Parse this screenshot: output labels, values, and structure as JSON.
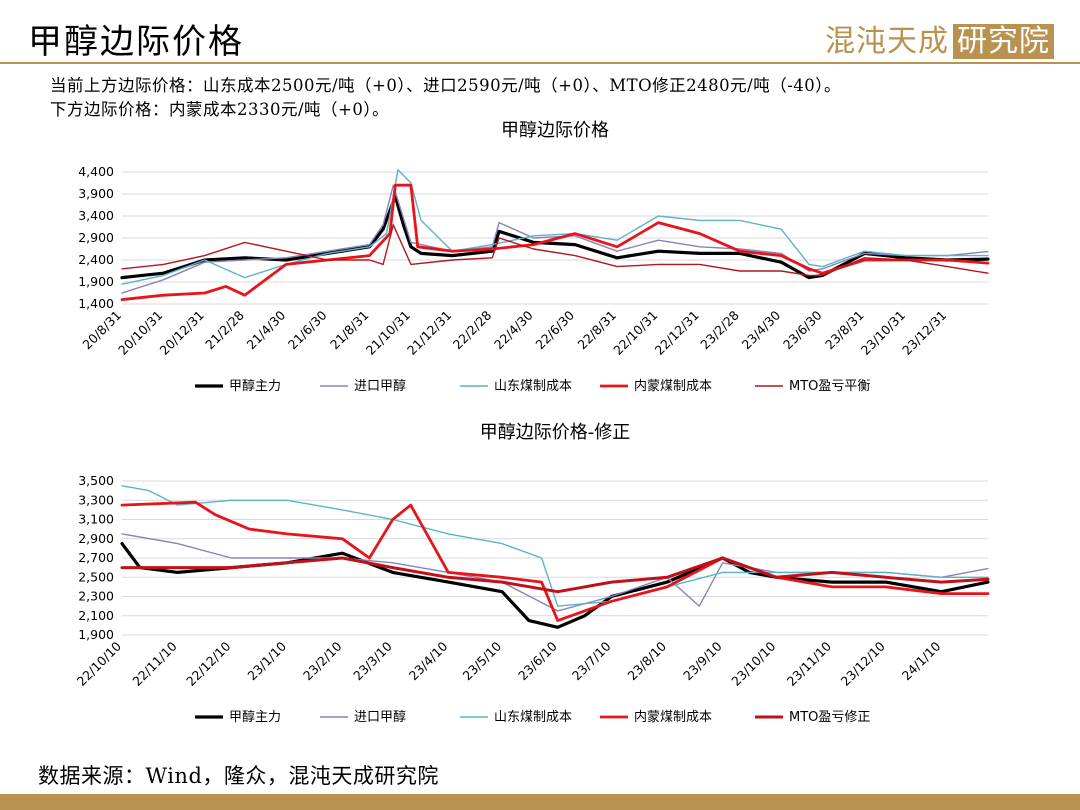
{
  "header": {
    "title": "甲醇边际价格",
    "logo_text": "混沌天成",
    "logo_boxed_text": "研究院"
  },
  "intro": {
    "line1": "当前上方边际价格：山东成本2500元/吨（+0）、进口2590元/吨（+0）、MTO修正2480元/吨（-40）。",
    "line2": "下方边际价格：内蒙成本2330元/吨（+0）。"
  },
  "footer": {
    "source": "数据来源：Wind，隆众，混沌天成研究院"
  },
  "colors": {
    "accent": "#b9924f",
    "methanol_main": "#000000",
    "import": "#8a83b8",
    "shandong": "#5ab4c8",
    "inner_mongolia": "#e8141b",
    "mto_balance": "#b3171f",
    "mto_corrected": "#c01018"
  },
  "chart_data": [
    {
      "type": "line",
      "title": "甲醇边际价格",
      "xlabel": "",
      "ylabel": "",
      "ylim": [
        1400,
        4400
      ],
      "yticks": [
        1400,
        1900,
        2400,
        2900,
        3400,
        3900,
        4400
      ],
      "ytick_labels": [
        "1,400",
        "1,900",
        "2,400",
        "2,900",
        "3,400",
        "3,900",
        "4,400"
      ],
      "x_ticks": [
        "20/8/31",
        "20/10/31",
        "20/12/31",
        "21/2/28",
        "21/4/30",
        "21/6/30",
        "21/8/31",
        "21/10/31",
        "21/12/31",
        "22/2/28",
        "22/4/30",
        "22/6/30",
        "22/8/31",
        "22/10/31",
        "22/12/31",
        "23/2/28",
        "23/4/30",
        "23/6/30",
        "23/8/31",
        "23/10/31",
        "23/12/31"
      ],
      "x_range": [
        "2020-08-31",
        "2024-02-29"
      ],
      "grid": "horizontal",
      "legend_position": "bottom",
      "series": [
        {
          "name": "甲醇主力",
          "color": "#000000",
          "width": 3.2,
          "x": [
            "2020-08-31",
            "2020-10-31",
            "2020-12-31",
            "2021-02-28",
            "2021-04-30",
            "2021-06-30",
            "2021-08-31",
            "2021-09-20",
            "2021-10-08",
            "2021-10-20",
            "2021-10-31",
            "2021-11-15",
            "2021-12-31",
            "2022-02-28",
            "2022-03-10",
            "2022-04-30",
            "2022-06-30",
            "2022-08-31",
            "2022-10-31",
            "2022-12-31",
            "2023-02-28",
            "2023-04-30",
            "2023-06-10",
            "2023-06-30",
            "2023-08-31",
            "2023-10-31",
            "2023-12-31",
            "2024-02-29"
          ],
          "values": [
            2000,
            2100,
            2400,
            2450,
            2400,
            2550,
            2700,
            3100,
            3850,
            3200,
            2700,
            2550,
            2500,
            2600,
            3050,
            2800,
            2750,
            2450,
            2600,
            2550,
            2550,
            2350,
            2000,
            2050,
            2550,
            2450,
            2400,
            2420
          ]
        },
        {
          "name": "进口甲醇",
          "color": "#8a83b8",
          "width": 1.4,
          "x": [
            "2020-08-31",
            "2020-10-31",
            "2020-12-31",
            "2021-02-28",
            "2021-04-30",
            "2021-06-30",
            "2021-08-31",
            "2021-09-20",
            "2021-10-05",
            "2021-10-31",
            "2021-12-31",
            "2022-02-28",
            "2022-03-10",
            "2022-04-30",
            "2022-06-30",
            "2022-08-31",
            "2022-10-31",
            "2022-12-31",
            "2023-02-28",
            "2023-04-30",
            "2023-06-10",
            "2023-06-30",
            "2023-08-31",
            "2023-10-31",
            "2023-12-31",
            "2024-02-29"
          ],
          "values": [
            1650,
            1950,
            2350,
            2400,
            2450,
            2600,
            2750,
            3200,
            4100,
            2800,
            2600,
            2700,
            3250,
            2900,
            2950,
            2600,
            2850,
            2700,
            2650,
            2550,
            2150,
            2200,
            2550,
            2500,
            2500,
            2590
          ]
        },
        {
          "name": "山东煤制成本",
          "color": "#5ab4c8",
          "width": 1.4,
          "x": [
            "2020-08-31",
            "2020-10-31",
            "2020-12-31",
            "2021-02-28",
            "2021-04-30",
            "2021-06-30",
            "2021-08-31",
            "2021-09-25",
            "2021-10-12",
            "2021-10-31",
            "2021-11-15",
            "2021-12-31",
            "2022-02-28",
            "2022-04-30",
            "2022-06-30",
            "2022-08-31",
            "2022-10-31",
            "2022-12-31",
            "2023-02-28",
            "2023-04-30",
            "2023-06-10",
            "2023-06-30",
            "2023-08-31",
            "2023-10-31",
            "2023-12-31",
            "2024-02-29"
          ],
          "values": [
            1850,
            2050,
            2400,
            2000,
            2300,
            2550,
            2700,
            3000,
            4450,
            4150,
            3300,
            2600,
            2750,
            2950,
            3000,
            2850,
            3400,
            3300,
            3300,
            3100,
            2300,
            2250,
            2600,
            2500,
            2500,
            2500
          ]
        },
        {
          "name": "内蒙煤制成本",
          "color": "#e8141b",
          "width": 2.8,
          "x": [
            "2020-08-31",
            "2020-10-31",
            "2020-12-31",
            "2021-01-31",
            "2021-02-28",
            "2021-04-30",
            "2021-06-30",
            "2021-08-31",
            "2021-09-30",
            "2021-10-08",
            "2021-10-31",
            "2021-11-10",
            "2021-12-31",
            "2022-02-28",
            "2022-04-30",
            "2022-06-30",
            "2022-08-31",
            "2022-10-31",
            "2022-12-31",
            "2023-02-28",
            "2023-04-30",
            "2023-06-10",
            "2023-06-30",
            "2023-08-31",
            "2023-10-31",
            "2023-12-31",
            "2024-02-29"
          ],
          "values": [
            1500,
            1600,
            1650,
            1800,
            1600,
            2300,
            2400,
            2500,
            3000,
            4100,
            4100,
            2700,
            2600,
            2650,
            2750,
            3000,
            2700,
            3250,
            3000,
            2600,
            2500,
            2200,
            2100,
            2400,
            2400,
            2400,
            2330
          ]
        },
        {
          "name": "MTO盈亏平衡",
          "color": "#b3171f",
          "width": 1.4,
          "x": [
            "2020-08-31",
            "2020-10-31",
            "2020-12-31",
            "2021-02-28",
            "2021-04-30",
            "2021-06-30",
            "2021-08-31",
            "2021-09-20",
            "2021-10-05",
            "2021-10-31",
            "2021-12-31",
            "2022-02-28",
            "2022-03-10",
            "2022-04-30",
            "2022-06-30",
            "2022-08-31",
            "2022-10-31",
            "2022-12-31",
            "2023-02-28",
            "2023-04-30",
            "2023-06-10",
            "2023-06-30",
            "2023-08-31",
            "2023-10-31",
            "2023-12-31",
            "2024-02-29"
          ],
          "values": [
            2200,
            2300,
            2500,
            2800,
            2600,
            2400,
            2400,
            2300,
            3200,
            2300,
            2400,
            2450,
            2900,
            2650,
            2500,
            2250,
            2300,
            2300,
            2150,
            2150,
            2050,
            2050,
            2450,
            2400,
            2250,
            2100
          ]
        }
      ]
    },
    {
      "type": "line",
      "title": "甲醇边际价格-修正",
      "xlabel": "",
      "ylabel": "",
      "ylim": [
        1900,
        3500
      ],
      "yticks": [
        1900,
        2100,
        2300,
        2500,
        2700,
        2900,
        3100,
        3300,
        3500
      ],
      "ytick_labels": [
        "1,900",
        "2,100",
        "2,300",
        "2,500",
        "2,700",
        "2,900",
        "3,100",
        "3,300",
        "3,500"
      ],
      "x_ticks": [
        "22/10/10",
        "22/11/10",
        "22/12/10",
        "23/1/10",
        "23/2/10",
        "23/3/10",
        "23/4/10",
        "23/5/10",
        "23/6/10",
        "23/7/10",
        "23/8/10",
        "23/9/10",
        "23/10/10",
        "23/11/10",
        "23/12/10",
        "24/1/10"
      ],
      "x_range": [
        "2022-10-10",
        "2024-02-05"
      ],
      "grid": "horizontal",
      "legend_position": "bottom",
      "series": [
        {
          "name": "甲醇主力",
          "color": "#000000",
          "width": 3.2,
          "x": [
            "2022-10-10",
            "2022-10-20",
            "2022-11-10",
            "2022-12-10",
            "2023-01-10",
            "2023-02-10",
            "2023-03-10",
            "2023-04-10",
            "2023-05-10",
            "2023-05-25",
            "2023-06-10",
            "2023-06-25",
            "2023-07-10",
            "2023-08-10",
            "2023-09-10",
            "2023-09-25",
            "2023-10-10",
            "2023-11-10",
            "2023-12-10",
            "2024-01-10",
            "2024-02-05"
          ],
          "values": [
            2850,
            2600,
            2550,
            2600,
            2650,
            2750,
            2550,
            2450,
            2350,
            2050,
            1980,
            2100,
            2300,
            2450,
            2700,
            2550,
            2500,
            2450,
            2450,
            2350,
            2450
          ]
        },
        {
          "name": "进口甲醇",
          "color": "#8a83b8",
          "width": 1.4,
          "x": [
            "2022-10-10",
            "2022-11-10",
            "2022-12-10",
            "2023-01-10",
            "2023-02-10",
            "2023-03-10",
            "2023-04-10",
            "2023-05-10",
            "2023-06-10",
            "2023-07-10",
            "2023-08-10",
            "2023-08-28",
            "2023-09-10",
            "2023-10-10",
            "2023-11-10",
            "2023-12-10",
            "2024-01-10",
            "2024-02-05"
          ],
          "values": [
            2950,
            2850,
            2700,
            2700,
            2700,
            2650,
            2550,
            2450,
            2150,
            2300,
            2500,
            2200,
            2650,
            2550,
            2550,
            2550,
            2500,
            2590
          ]
        },
        {
          "name": "山东煤制成本",
          "color": "#5ab4c8",
          "width": 1.4,
          "x": [
            "2022-10-10",
            "2022-10-25",
            "2022-11-10",
            "2022-12-10",
            "2023-01-10",
            "2023-02-10",
            "2023-03-10",
            "2023-04-10",
            "2023-05-10",
            "2023-06-01",
            "2023-06-10",
            "2023-07-10",
            "2023-08-10",
            "2023-09-10",
            "2023-10-10",
            "2023-11-10",
            "2023-12-10",
            "2024-01-10",
            "2024-02-05"
          ],
          "values": [
            3450,
            3400,
            3250,
            3300,
            3300,
            3200,
            3100,
            2950,
            2850,
            2700,
            2200,
            2250,
            2400,
            2550,
            2550,
            2550,
            2550,
            2500,
            2500
          ]
        },
        {
          "name": "内蒙煤制成本",
          "color": "#e8141b",
          "width": 2.8,
          "x": [
            "2022-10-10",
            "2022-11-20",
            "2022-12-01",
            "2022-12-20",
            "2023-01-10",
            "2023-02-10",
            "2023-02-25",
            "2023-03-10",
            "2023-03-20",
            "2023-04-10",
            "2023-05-10",
            "2023-06-01",
            "2023-06-10",
            "2023-07-10",
            "2023-08-10",
            "2023-09-10",
            "2023-10-10",
            "2023-11-10",
            "2023-12-10",
            "2024-01-10",
            "2024-02-05"
          ],
          "values": [
            3250,
            3280,
            3150,
            3000,
            2950,
            2900,
            2700,
            3100,
            3250,
            2550,
            2500,
            2450,
            2050,
            2250,
            2400,
            2700,
            2500,
            2400,
            2400,
            2330,
            2330
          ]
        },
        {
          "name": "MTO盈亏修正",
          "color": "#c01018",
          "width": 3.0,
          "x": [
            "2022-10-10",
            "2022-11-10",
            "2022-12-10",
            "2023-01-10",
            "2023-02-10",
            "2023-03-10",
            "2023-04-10",
            "2023-05-10",
            "2023-06-10",
            "2023-07-10",
            "2023-08-10",
            "2023-09-10",
            "2023-10-10",
            "2023-11-10",
            "2023-12-10",
            "2024-01-10",
            "2024-02-05"
          ],
          "values": [
            2600,
            2600,
            2600,
            2650,
            2700,
            2600,
            2500,
            2450,
            2350,
            2450,
            2500,
            2700,
            2500,
            2550,
            2500,
            2450,
            2480
          ]
        }
      ]
    }
  ]
}
